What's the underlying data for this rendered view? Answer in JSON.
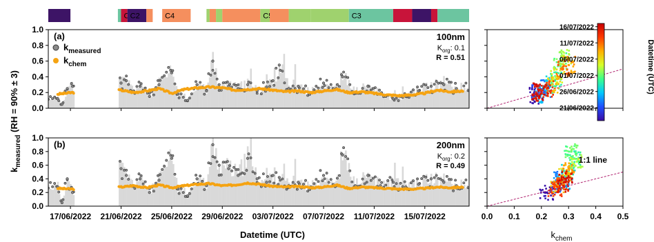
{
  "chart_data": [
    {
      "type": "timeline",
      "segments": [
        {
          "start": "2022-06-15T06",
          "end": "2022-06-17T00",
          "color": "#3d1466",
          "label": ""
        },
        {
          "start": "2022-06-20T18",
          "end": "2022-06-21T00",
          "color": "#6cc5a0",
          "label": ""
        },
        {
          "start": "2022-06-21T00",
          "end": "2022-06-21T12",
          "color": "#c8143a",
          "label": "C1"
        },
        {
          "start": "2022-06-21T12",
          "end": "2022-06-23T00",
          "color": "#3d1466",
          "label": "C2"
        },
        {
          "start": "2022-06-23T00",
          "end": "2022-06-23T12",
          "color": "#f58f5e",
          "label": ""
        },
        {
          "start": "2022-06-24T06",
          "end": "2022-06-26T12",
          "color": "#f58f5e",
          "label": "C4"
        },
        {
          "start": "2022-06-27T18",
          "end": "2022-06-28T00",
          "color": "#9fd26e",
          "label": ""
        },
        {
          "start": "2022-06-28T00",
          "end": "2022-06-28T12",
          "color": "#f58f5e",
          "label": ""
        },
        {
          "start": "2022-06-28T12",
          "end": "2022-06-29T00",
          "color": "#9fd26e",
          "label": ""
        },
        {
          "start": "2022-06-29T00",
          "end": "2022-07-02T00",
          "color": "#f58f5e",
          "label": ""
        },
        {
          "start": "2022-07-02T00",
          "end": "2022-07-02T18",
          "color": "#9fd26e",
          "label": "C5"
        },
        {
          "start": "2022-07-02T18",
          "end": "2022-07-04T06",
          "color": "#f58f5e",
          "label": ""
        },
        {
          "start": "2022-07-04T06",
          "end": "2022-07-06T00",
          "color": "#9fd26e",
          "label": ""
        },
        {
          "start": "2022-07-06T00",
          "end": "2022-07-09T00",
          "color": "#9fd26e",
          "label": ""
        },
        {
          "start": "2022-07-09T00",
          "end": "2022-07-12T12",
          "color": "#6cc5a0",
          "label": "C3"
        },
        {
          "start": "2022-07-12T12",
          "end": "2022-07-14T00",
          "color": "#c8143a",
          "label": ""
        },
        {
          "start": "2022-07-14T00",
          "end": "2022-07-15T12",
          "color": "#3d1466",
          "label": ""
        },
        {
          "start": "2022-07-15T12",
          "end": "2022-07-16T00",
          "color": "#c8143a",
          "label": ""
        },
        {
          "start": "2022-07-16T00",
          "end": "2022-07-18T12",
          "color": "#6cc5a0",
          "label": ""
        }
      ]
    },
    {
      "type": "line",
      "panel_label": "(a)",
      "size_label": "100nm",
      "korg_sub": "org",
      "korg_value": ": 0.1",
      "r_label": "R = 0.51",
      "ylim": [
        0,
        1.0
      ],
      "yticks": [
        "0.0",
        "0.2",
        "0.4",
        "0.6",
        "0.8",
        "1.0"
      ],
      "gaps": [
        [
          "2022-06-17T06",
          "2022-06-20T20"
        ]
      ],
      "series": [
        {
          "name": "k_measured",
          "x": [
            "2022-06-16T00",
            "2022-06-16T08",
            "2022-06-16T18",
            "2022-06-17T04",
            "2022-06-21T00",
            "2022-06-21T10",
            "2022-06-22T00",
            "2022-06-22T12",
            "2022-06-23T06",
            "2022-06-24T00",
            "2022-06-25T00",
            "2022-06-25T12",
            "2022-06-26T06",
            "2022-06-27T00",
            "2022-06-27T18",
            "2022-06-28T06",
            "2022-06-28T18",
            "2022-06-29T12",
            "2022-06-30T06",
            "2022-07-01T00",
            "2022-07-01T18",
            "2022-07-02T12",
            "2022-07-03T00",
            "2022-07-03T12",
            "2022-07-04T06",
            "2022-07-05T00",
            "2022-07-06T00",
            "2022-07-07T00",
            "2022-07-08T00",
            "2022-07-08T12",
            "2022-07-09T12",
            "2022-07-10T12",
            "2022-07-11T12",
            "2022-07-12T12",
            "2022-07-13T12",
            "2022-07-14T12",
            "2022-07-15T12",
            "2022-07-16T12",
            "2022-07-17T12"
          ],
          "y": [
            0.12,
            0.05,
            0.25,
            0.28,
            0.32,
            0.35,
            0.22,
            0.28,
            0.15,
            0.3,
            0.45,
            0.18,
            0.1,
            0.3,
            0.22,
            0.6,
            0.3,
            0.28,
            0.25,
            0.3,
            0.22,
            0.27,
            0.35,
            0.55,
            0.25,
            0.28,
            0.2,
            0.32,
            0.25,
            0.4,
            0.2,
            0.28,
            0.18,
            0.12,
            0.15,
            0.22,
            0.28,
            0.3,
            0.25
          ]
        },
        {
          "name": "k_chem",
          "x": [
            "2022-06-16T00",
            "2022-06-17T04",
            "2022-06-21T00",
            "2022-06-22T00",
            "2022-06-23T00",
            "2022-06-24T00",
            "2022-06-25T00",
            "2022-06-26T00",
            "2022-06-27T00",
            "2022-06-28T00",
            "2022-06-29T00",
            "2022-06-30T00",
            "2022-07-01T00",
            "2022-07-02T00",
            "2022-07-03T00",
            "2022-07-04T00",
            "2022-07-05T00",
            "2022-07-06T00",
            "2022-07-07T00",
            "2022-07-08T00",
            "2022-07-09T00",
            "2022-07-10T00",
            "2022-07-11T00",
            "2022-07-12T00",
            "2022-07-13T00",
            "2022-07-14T00",
            "2022-07-15T00",
            "2022-07-16T00",
            "2022-07-17T00",
            "2022-07-18T00"
          ],
          "y": [
            0.18,
            0.2,
            0.23,
            0.2,
            0.22,
            0.25,
            0.19,
            0.24,
            0.26,
            0.27,
            0.26,
            0.23,
            0.24,
            0.25,
            0.23,
            0.21,
            0.22,
            0.2,
            0.22,
            0.24,
            0.2,
            0.21,
            0.19,
            0.17,
            0.16,
            0.17,
            0.19,
            0.23,
            0.21,
            0.22
          ]
        }
      ],
      "legend": [
        {
          "main": "k",
          "sub": "measured",
          "marker": "circle-gray"
        },
        {
          "main": "k",
          "sub": "chem",
          "marker": "circle-orange"
        }
      ]
    },
    {
      "type": "line",
      "panel_label": "(b)",
      "size_label": "200nm",
      "korg_sub": "org",
      "korg_value": ": 0.2",
      "r_label": "R = 0.49",
      "ylim": [
        0,
        1.0
      ],
      "yticks": [
        "0.0",
        "0.2",
        "0.4",
        "0.6",
        "0.8",
        "1.0"
      ],
      "gaps": [
        [
          "2022-06-17T06",
          "2022-06-20T20"
        ]
      ],
      "series": [
        {
          "name": "k_measured",
          "x": [
            "2022-06-16T00",
            "2022-06-16T08",
            "2022-06-16T18",
            "2022-06-17T04",
            "2022-06-21T00",
            "2022-06-21T10",
            "2022-06-22T00",
            "2022-06-22T12",
            "2022-06-23T06",
            "2022-06-24T00",
            "2022-06-25T00",
            "2022-06-25T12",
            "2022-06-26T06",
            "2022-06-27T00",
            "2022-06-27T18",
            "2022-06-28T06",
            "2022-06-28T18",
            "2022-06-29T12",
            "2022-06-30T06",
            "2022-07-01T00",
            "2022-07-01T18",
            "2022-07-02T12",
            "2022-07-03T00",
            "2022-07-03T12",
            "2022-07-04T06",
            "2022-07-05T00",
            "2022-07-06T00",
            "2022-07-07T00",
            "2022-07-08T00",
            "2022-07-08T12",
            "2022-07-09T12",
            "2022-07-10T12",
            "2022-07-11T12",
            "2022-07-12T12",
            "2022-07-13T12",
            "2022-07-14T12",
            "2022-07-15T12",
            "2022-07-16T12",
            "2022-07-17T12"
          ],
          "y": [
            0.28,
            0.05,
            0.4,
            0.2,
            0.55,
            0.45,
            0.3,
            0.4,
            0.2,
            0.38,
            0.7,
            0.25,
            0.15,
            0.4,
            0.3,
            0.9,
            0.6,
            0.55,
            0.45,
            0.7,
            0.4,
            0.35,
            0.45,
            0.42,
            0.3,
            0.35,
            0.28,
            0.45,
            0.3,
            0.75,
            0.3,
            0.45,
            0.3,
            0.35,
            0.28,
            0.32,
            0.4,
            0.35,
            0.3
          ]
        },
        {
          "name": "k_chem",
          "x": [
            "2022-06-16T00",
            "2022-06-17T04",
            "2022-06-21T00",
            "2022-06-22T00",
            "2022-06-23T00",
            "2022-06-24T00",
            "2022-06-25T00",
            "2022-06-26T00",
            "2022-06-27T00",
            "2022-06-28T00",
            "2022-06-29T00",
            "2022-06-30T00",
            "2022-07-01T00",
            "2022-07-02T00",
            "2022-07-03T00",
            "2022-07-04T00",
            "2022-07-05T00",
            "2022-07-06T00",
            "2022-07-07T00",
            "2022-07-08T00",
            "2022-07-09T00",
            "2022-07-10T00",
            "2022-07-11T00",
            "2022-07-12T00",
            "2022-07-13T00",
            "2022-07-14T00",
            "2022-07-15T00",
            "2022-07-16T00",
            "2022-07-17T00",
            "2022-07-18T00"
          ],
          "y": [
            0.26,
            0.25,
            0.28,
            0.3,
            0.27,
            0.31,
            0.27,
            0.3,
            0.32,
            0.33,
            0.3,
            0.31,
            0.34,
            0.32,
            0.29,
            0.28,
            0.29,
            0.27,
            0.28,
            0.31,
            0.26,
            0.28,
            0.27,
            0.26,
            0.25,
            0.25,
            0.26,
            0.28,
            0.27,
            0.28
          ]
        }
      ]
    },
    {
      "type": "scatter",
      "ylim": [
        0,
        1.0
      ],
      "xlim": [
        0.15,
        0.38
      ],
      "color_by": "datetime",
      "points": [
        {
          "x": 0.18,
          "y": 0.15,
          "t": "2022-06-17"
        },
        {
          "x": 0.19,
          "y": 0.2,
          "t": "2022-06-21"
        },
        {
          "x": 0.21,
          "y": 0.25,
          "t": "2022-06-23"
        },
        {
          "x": 0.2,
          "y": 0.18,
          "t": "2022-06-25"
        },
        {
          "x": 0.23,
          "y": 0.3,
          "t": "2022-06-27"
        },
        {
          "x": 0.25,
          "y": 0.35,
          "t": "2022-06-29"
        },
        {
          "x": 0.27,
          "y": 0.6,
          "t": "2022-07-01"
        },
        {
          "x": 0.29,
          "y": 0.65,
          "t": "2022-07-03"
        },
        {
          "x": 0.26,
          "y": 0.4,
          "t": "2022-07-05"
        },
        {
          "x": 0.24,
          "y": 0.3,
          "t": "2022-07-07"
        },
        {
          "x": 0.3,
          "y": 0.55,
          "t": "2022-07-09"
        },
        {
          "x": 0.28,
          "y": 0.5,
          "t": "2022-07-11"
        },
        {
          "x": 0.22,
          "y": 0.25,
          "t": "2022-07-13"
        },
        {
          "x": 0.2,
          "y": 0.2,
          "t": "2022-07-15"
        },
        {
          "x": 0.19,
          "y": 0.22,
          "t": "2022-07-16"
        }
      ]
    },
    {
      "type": "scatter",
      "ylim": [
        0,
        1.0
      ],
      "xlim": [
        0.2,
        0.38
      ],
      "color_by": "datetime",
      "points": [
        {
          "x": 0.22,
          "y": 0.2,
          "t": "2022-06-17"
        },
        {
          "x": 0.25,
          "y": 0.3,
          "t": "2022-06-21"
        },
        {
          "x": 0.27,
          "y": 0.4,
          "t": "2022-06-23"
        },
        {
          "x": 0.28,
          "y": 0.35,
          "t": "2022-06-25"
        },
        {
          "x": 0.3,
          "y": 0.5,
          "t": "2022-06-27"
        },
        {
          "x": 0.32,
          "y": 0.7,
          "t": "2022-06-29"
        },
        {
          "x": 0.31,
          "y": 0.8,
          "t": "2022-07-01"
        },
        {
          "x": 0.33,
          "y": 0.65,
          "t": "2022-07-03"
        },
        {
          "x": 0.29,
          "y": 0.45,
          "t": "2022-07-05"
        },
        {
          "x": 0.26,
          "y": 0.3,
          "t": "2022-07-07"
        },
        {
          "x": 0.3,
          "y": 0.55,
          "t": "2022-07-09"
        },
        {
          "x": 0.27,
          "y": 0.35,
          "t": "2022-07-11"
        },
        {
          "x": 0.25,
          "y": 0.25,
          "t": "2022-07-13"
        },
        {
          "x": 0.28,
          "y": 0.3,
          "t": "2022-07-15"
        },
        {
          "x": 0.29,
          "y": 0.4,
          "t": "2022-07-16"
        }
      ],
      "annotation": "1:1 line"
    }
  ],
  "shared": {
    "xlabel": "Datetime (UTC)",
    "date_range": [
      "2022-06-15T06",
      "2022-07-18T12"
    ],
    "date_ticks": [
      "17/06/2022",
      "21/06/2022",
      "25/06/2022",
      "29/06/2022",
      "03/07/2022",
      "07/07/2022",
      "11/07/2022",
      "15/07/2022"
    ],
    "ylabel_main": "k",
    "ylabel_sub": "measured",
    "ylabel_suffix": " (RH = 90% ± 3)",
    "scatter_xlabel_main": "k",
    "scatter_xlabel_sub": "chem",
    "scatter_xlim": [
      0.0,
      0.5
    ],
    "scatter_xticks": [
      "0.0",
      "0.1",
      "0.2",
      "0.3",
      "0.4",
      "0.5"
    ],
    "one_to_one_color": "#b0206e",
    "measured_fill": "#d9d9d9",
    "measured_point": "#333333",
    "chem_color": "#f5a312"
  },
  "colorbar": {
    "title": "Datetime (UTC)",
    "ticks": [
      "16/07/2022",
      "11/07/2022",
      "06/07/2022",
      "01/07/2022",
      "26/06/2022",
      "21/06/2022"
    ],
    "range": [
      "2022-06-17",
      "2022-07-17"
    ],
    "colors": [
      "#3a0ca3",
      "#1f4fff",
      "#00c8ff",
      "#3cff8c",
      "#d6ff2a",
      "#ffb000",
      "#ff3b00",
      "#c80000"
    ]
  }
}
